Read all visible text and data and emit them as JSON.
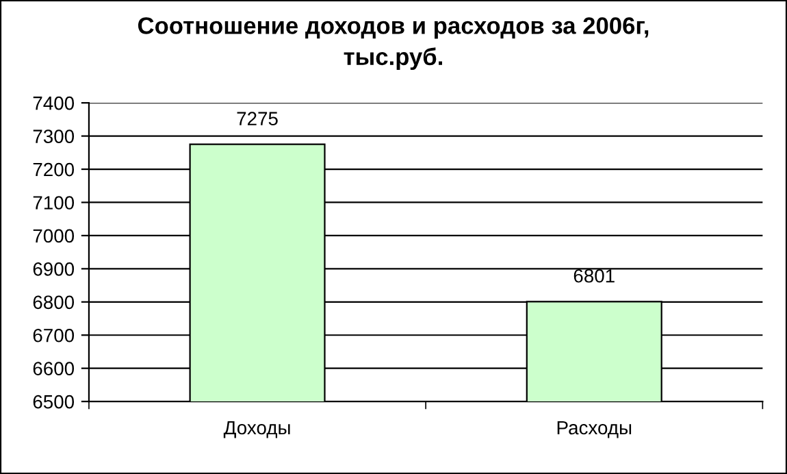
{
  "chart_data": {
    "type": "bar",
    "title": "Соотношение доходов и расходов за 2006г,\nтыс.руб.",
    "categories": [
      "Доходы",
      "Расходы"
    ],
    "values": [
      7275,
      6801
    ],
    "color": "#ccffcc",
    "ylim": [
      6500,
      7400
    ],
    "yticks": [
      6500,
      6600,
      6700,
      6800,
      6900,
      7000,
      7100,
      7200,
      7300,
      7400
    ],
    "grid": "y",
    "data_labels": true
  }
}
